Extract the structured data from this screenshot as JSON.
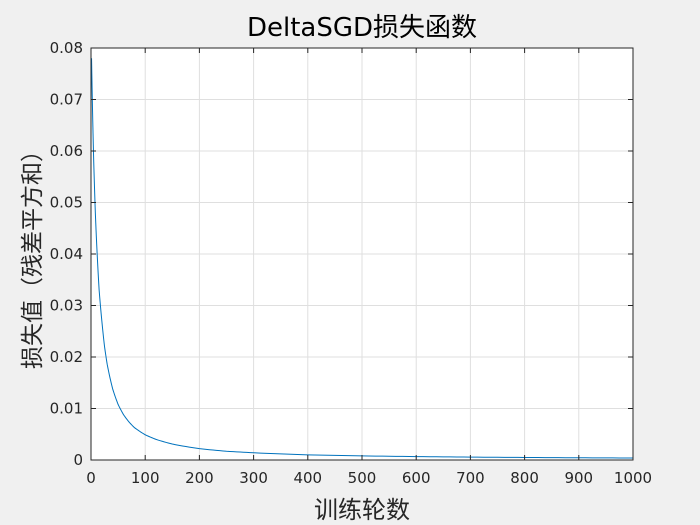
{
  "chart_data": {
    "type": "line",
    "title": "DeltaSGD损失函数",
    "xlabel": "训练轮数",
    "ylabel": "损失值（残差平方和）",
    "xlim": [
      0,
      1000
    ],
    "ylim": [
      0,
      0.08
    ],
    "xticks": [
      "0",
      "100",
      "200",
      "300",
      "400",
      "500",
      "600",
      "700",
      "800",
      "900",
      "1000"
    ],
    "yticks": [
      "0",
      "0.01",
      "0.02",
      "0.03",
      "0.04",
      "0.05",
      "0.06",
      "0.07",
      "0.08"
    ],
    "grid": true,
    "series": [
      {
        "color": "#0072bd",
        "x": [
          1,
          3,
          5,
          8,
          10,
          15,
          20,
          25,
          30,
          40,
          50,
          60,
          70,
          80,
          100,
          120,
          150,
          200,
          250,
          300,
          400,
          500,
          600,
          700,
          800,
          900,
          1000
        ],
        "y": [
          0.078,
          0.067,
          0.058,
          0.048,
          0.043,
          0.033,
          0.027,
          0.022,
          0.0185,
          0.0138,
          0.0108,
          0.0088,
          0.0074,
          0.0063,
          0.0049,
          0.004,
          0.0031,
          0.0022,
          0.0017,
          0.0014,
          0.001,
          0.0008,
          0.00066,
          0.00056,
          0.00049,
          0.00043,
          0.00039
        ]
      }
    ]
  }
}
